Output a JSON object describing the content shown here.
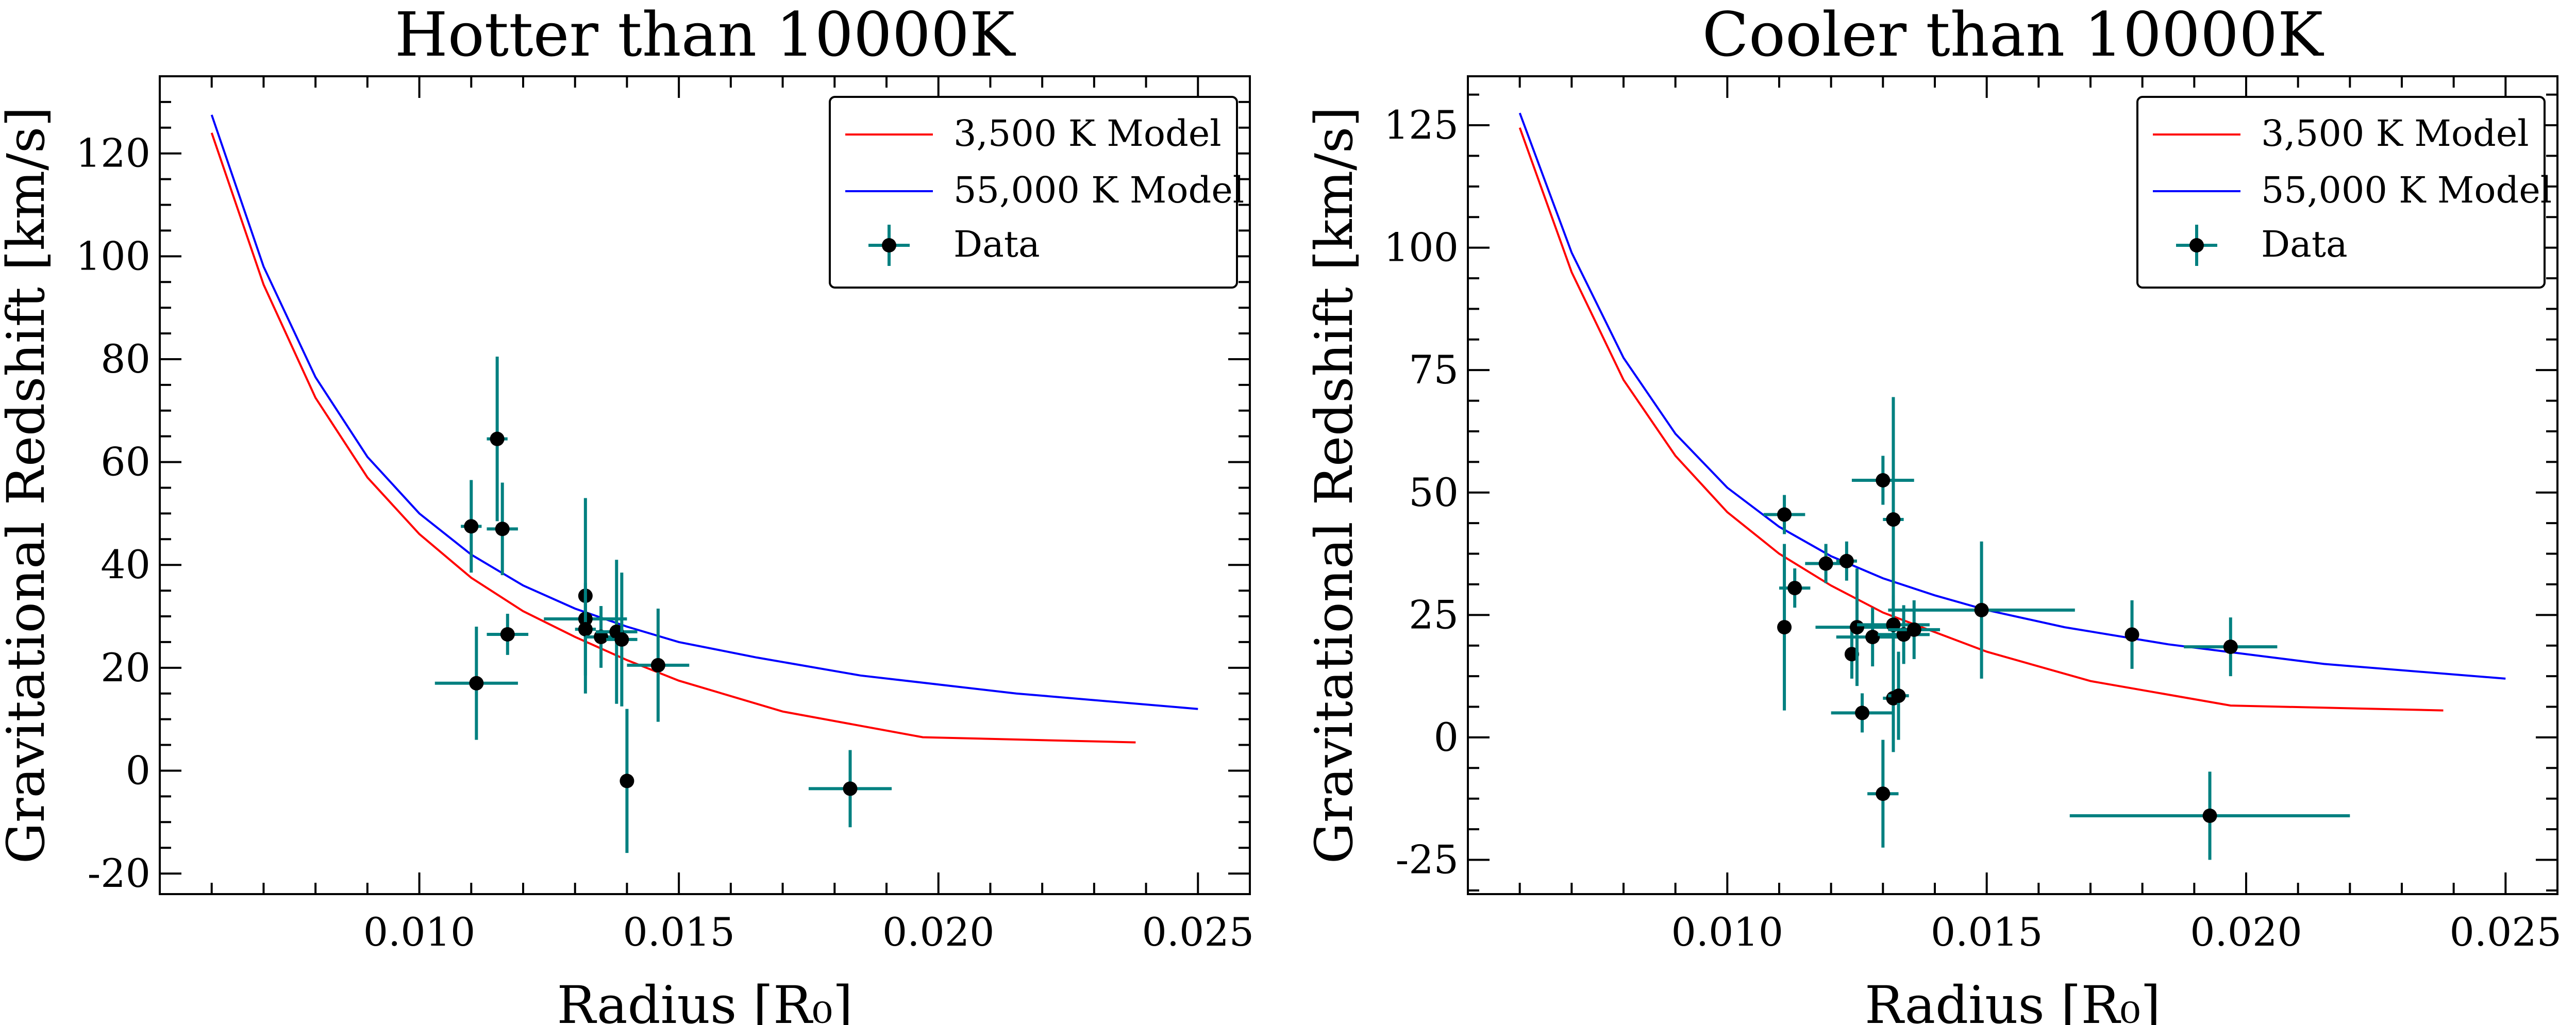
{
  "chart_data": [
    {
      "type": "line",
      "title": "Hotter than 10000K",
      "xlabel": "Radius [R₀]",
      "ylabel": "Gravitational Redshift [km/s]",
      "xlim": [
        0.005,
        0.026
      ],
      "ylim": [
        -24,
        135
      ],
      "xticks": [
        0.01,
        0.015,
        0.02,
        0.025
      ],
      "xtick_labels": [
        "0.010",
        "0.015",
        "0.020",
        "0.025"
      ],
      "yticks": [
        -20,
        0,
        20,
        40,
        60,
        80,
        100,
        120
      ],
      "ytick_labels": [
        "-20",
        "0",
        "20",
        "40",
        "60",
        "80",
        "100",
        "120"
      ],
      "legend_position": "top-right",
      "series": [
        {
          "name": "3,500 K Model",
          "color": "#ff0000",
          "x": [
            0.006,
            0.007,
            0.008,
            0.009,
            0.01,
            0.011,
            0.012,
            0.013,
            0.014,
            0.015,
            0.017,
            0.0197,
            0.0238
          ],
          "y": [
            124.0,
            94.5,
            72.5,
            57.0,
            46.0,
            37.5,
            31.0,
            26.0,
            21.5,
            17.5,
            11.5,
            6.5,
            5.5
          ]
        },
        {
          "name": "55,000 K Model",
          "color": "#0000ff",
          "x": [
            0.006,
            0.007,
            0.008,
            0.009,
            0.01,
            0.011,
            0.012,
            0.013,
            0.014,
            0.015,
            0.0165,
            0.0185,
            0.0215,
            0.025
          ],
          "y": [
            127.5,
            98.0,
            76.5,
            61.0,
            50.0,
            42.0,
            36.0,
            31.5,
            28.0,
            25.0,
            22.0,
            18.5,
            15.0,
            12.0
          ]
        }
      ],
      "data_series": {
        "name": "Data",
        "marker_color": "#000000",
        "error_color": "#008080",
        "points": [
          {
            "x": 0.011,
            "y": 47.5,
            "xerr": 0.0002,
            "yerr": 9
          },
          {
            "x": 0.0111,
            "y": 17.0,
            "xerr": 0.0008,
            "yerr": 11
          },
          {
            "x": 0.0115,
            "y": 64.5,
            "xerr": 0.0002,
            "yerr": 16
          },
          {
            "x": 0.0116,
            "y": 47.0,
            "xerr": 0.0003,
            "yerr": 9
          },
          {
            "x": 0.0117,
            "y": 26.5,
            "xerr": 0.0004,
            "yerr": 4
          },
          {
            "x": 0.0132,
            "y": 34.0,
            "xerr": 0.0001,
            "yerr": 19
          },
          {
            "x": 0.0132,
            "y": 29.5,
            "xerr": 0.0008,
            "yerr": 5
          },
          {
            "x": 0.0132,
            "y": 27.5,
            "xerr": 0.0002,
            "yerr": 9
          },
          {
            "x": 0.0135,
            "y": 26.0,
            "xerr": 0.0003,
            "yerr": 6
          },
          {
            "x": 0.0138,
            "y": 27.0,
            "xerr": 0.0004,
            "yerr": 14
          },
          {
            "x": 0.0139,
            "y": 25.5,
            "xerr": 0.0003,
            "yerr": 13
          },
          {
            "x": 0.014,
            "y": -2.0,
            "xerr": 0.0001,
            "yerr": 14
          },
          {
            "x": 0.0146,
            "y": 20.5,
            "xerr": 0.0006,
            "yerr": 11
          },
          {
            "x": 0.0183,
            "y": -3.5,
            "xerr": 0.0008,
            "yerr": 7.5
          }
        ]
      }
    },
    {
      "type": "line",
      "title": "Cooler than 10000K",
      "xlabel": "Radius [R₀]",
      "ylabel": "Gravitational Redshift [km/s]",
      "xlim": [
        0.005,
        0.026
      ],
      "ylim": [
        -32,
        135
      ],
      "xticks": [
        0.01,
        0.015,
        0.02,
        0.025
      ],
      "xtick_labels": [
        "0.010",
        "0.015",
        "0.020",
        "0.025"
      ],
      "yticks": [
        -25,
        0,
        25,
        50,
        75,
        100,
        125
      ],
      "ytick_labels": [
        "-25",
        "0",
        "25",
        "50",
        "75",
        "100",
        "125"
      ],
      "legend_position": "top-right",
      "series": [
        {
          "name": "3,500 K Model",
          "color": "#ff0000",
          "x": [
            0.006,
            0.007,
            0.008,
            0.009,
            0.01,
            0.011,
            0.012,
            0.013,
            0.014,
            0.015,
            0.017,
            0.0197,
            0.0238
          ],
          "y": [
            124.5,
            95.0,
            73.0,
            57.5,
            46.0,
            37.5,
            31.0,
            25.5,
            21.5,
            17.5,
            11.5,
            6.5,
            5.5
          ]
        },
        {
          "name": "55,000 K Model",
          "color": "#0000ff",
          "x": [
            0.006,
            0.007,
            0.008,
            0.009,
            0.01,
            0.011,
            0.012,
            0.013,
            0.014,
            0.015,
            0.0165,
            0.0185,
            0.0215,
            0.025
          ],
          "y": [
            127.5,
            99.0,
            77.5,
            62.0,
            51.0,
            43.0,
            37.0,
            32.5,
            29.0,
            26.0,
            22.5,
            19.0,
            15.0,
            12.0
          ]
        }
      ],
      "data_series": {
        "name": "Data",
        "marker_color": "#000000",
        "error_color": "#008080",
        "points": [
          {
            "x": 0.0111,
            "y": 45.5,
            "xerr": 0.0004,
            "yerr": 4
          },
          {
            "x": 0.0111,
            "y": 22.5,
            "xerr": 0.0001,
            "yerr": 17
          },
          {
            "x": 0.0113,
            "y": 30.5,
            "xerr": 0.0003,
            "yerr": 4
          },
          {
            "x": 0.0119,
            "y": 35.5,
            "xerr": 0.0004,
            "yerr": 4
          },
          {
            "x": 0.0123,
            "y": 36.0,
            "xerr": 0.0002,
            "yerr": 4
          },
          {
            "x": 0.0124,
            "y": 17.0,
            "xerr": 0.0001,
            "yerr": 5
          },
          {
            "x": 0.0125,
            "y": 22.5,
            "xerr": 0.0008,
            "yerr": 12
          },
          {
            "x": 0.0126,
            "y": 5.0,
            "xerr": 0.0006,
            "yerr": 4
          },
          {
            "x": 0.0128,
            "y": 20.5,
            "xerr": 0.0007,
            "yerr": 6
          },
          {
            "x": 0.013,
            "y": 52.5,
            "xerr": 0.0006,
            "yerr": 5
          },
          {
            "x": 0.013,
            "y": -11.5,
            "xerr": 0.0003,
            "yerr": 11
          },
          {
            "x": 0.0132,
            "y": 44.5,
            "xerr": 0.0002,
            "yerr": 25
          },
          {
            "x": 0.0132,
            "y": 23.0,
            "xerr": 0.0007,
            "yerr": 6
          },
          {
            "x": 0.0132,
            "y": 8.0,
            "xerr": 0.0002,
            "yerr": 11
          },
          {
            "x": 0.0133,
            "y": 8.5,
            "xerr": 0.0002,
            "yerr": 9
          },
          {
            "x": 0.0134,
            "y": 21.0,
            "xerr": 0.0005,
            "yerr": 6
          },
          {
            "x": 0.0136,
            "y": 22.0,
            "xerr": 0.0005,
            "yerr": 6
          },
          {
            "x": 0.0149,
            "y": 26.0,
            "xerr": 0.0018,
            "yerr": 14
          },
          {
            "x": 0.0178,
            "y": 21.0,
            "xerr": 0.0001,
            "yerr": 7
          },
          {
            "x": 0.0197,
            "y": 18.5,
            "xerr": 0.0009,
            "yerr": 6
          },
          {
            "x": 0.0193,
            "y": -16.0,
            "xerr": 0.0027,
            "yerr": 9
          }
        ]
      }
    }
  ]
}
